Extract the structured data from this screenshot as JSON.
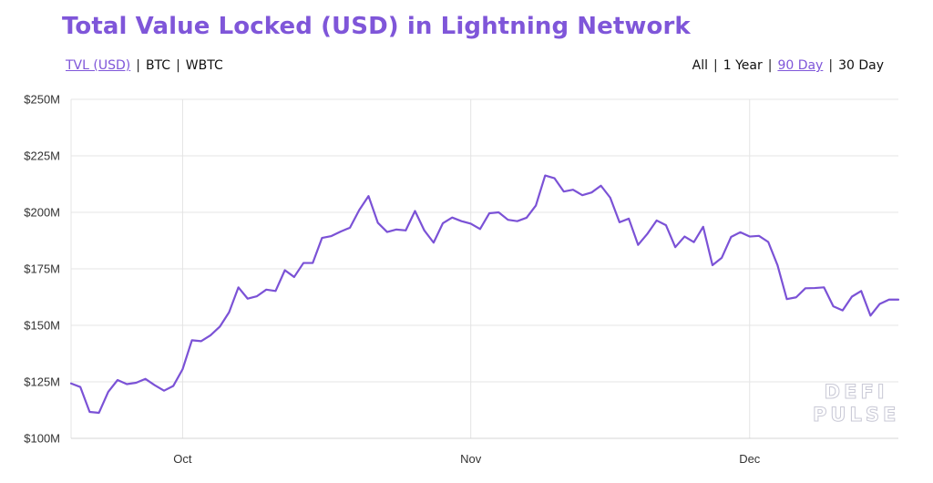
{
  "header": {
    "title": "Total Value Locked (USD) in Lightning Network"
  },
  "asset_tabs": [
    {
      "label": "TVL (USD)",
      "active": true
    },
    {
      "label": "BTC",
      "active": false
    },
    {
      "label": "WBTC",
      "active": false
    }
  ],
  "range_tabs": [
    {
      "label": "All",
      "active": false
    },
    {
      "label": "1 Year",
      "active": false
    },
    {
      "label": "90 Day",
      "active": true
    },
    {
      "label": "30 Day",
      "active": false
    }
  ],
  "watermark": {
    "line1": "DEFI",
    "line2": "PULSE"
  },
  "colors": {
    "accent": "#7f56d9",
    "line": "#7b52d6",
    "grid": "#e4e4e4"
  },
  "chart_data": {
    "type": "line",
    "title": "Total Value Locked (USD) in Lightning Network",
    "xlabel": "",
    "ylabel": "",
    "ylim": [
      100,
      250
    ],
    "y_unit": "USD millions",
    "y_ticks": [
      {
        "value": 250,
        "label": "$250M"
      },
      {
        "value": 225,
        "label": "$225M"
      },
      {
        "value": 200,
        "label": "$200M"
      },
      {
        "value": 175,
        "label": "$175M"
      },
      {
        "value": 150,
        "label": "$150M"
      },
      {
        "value": 125,
        "label": "$125M"
      },
      {
        "value": 100,
        "label": "$100M"
      }
    ],
    "x_ticks": [
      {
        "index": 12,
        "label": "Oct"
      },
      {
        "index": 43,
        "label": "Nov"
      },
      {
        "index": 73,
        "label": "Dec"
      }
    ],
    "grid": true,
    "legend": "none",
    "series": [
      {
        "values": [
          124.3,
          122.7,
          111.7,
          111.3,
          120.6,
          125.8,
          124.0,
          124.6,
          126.3,
          123.5,
          121.1,
          123.2,
          130.6,
          143.4,
          143.0,
          145.6,
          149.4,
          155.8,
          166.8,
          161.8,
          162.9,
          165.8,
          165.2,
          174.4,
          171.4,
          177.6,
          177.6,
          188.7,
          189.5,
          191.5,
          193.2,
          201.0,
          207.2,
          195.4,
          191.3,
          192.4,
          192.0,
          200.6,
          192.0,
          186.6,
          195.2,
          197.7,
          196.1,
          195.0,
          192.6,
          199.6,
          200.0,
          196.7,
          196.1,
          197.6,
          203.0,
          216.3,
          215.1,
          209.2,
          210.0,
          207.6,
          208.8,
          211.8,
          206.5,
          195.6,
          197.2,
          185.6,
          190.5,
          196.4,
          194.3,
          184.6,
          189.3,
          186.8,
          193.6,
          176.6,
          179.9,
          189.1,
          191.2,
          189.3,
          189.6,
          186.9,
          176.6,
          161.6,
          162.4,
          166.4,
          166.5,
          166.8,
          158.4,
          156.6,
          162.7,
          165.2,
          154.3,
          159.5,
          161.4,
          161.4
        ]
      }
    ]
  }
}
